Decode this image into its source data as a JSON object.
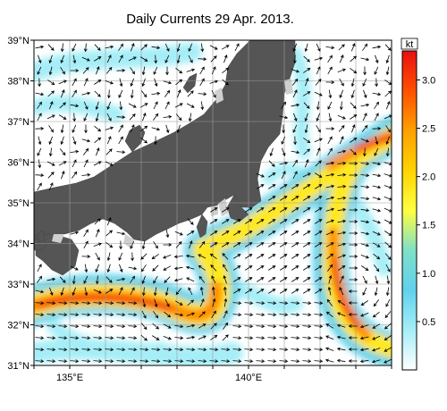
{
  "title": "Daily Currents 29 Apr. 2013.",
  "colorbar": {
    "unit": "kt",
    "ticks": [
      "0.5",
      "1.0",
      "1.5",
      "2.0",
      "2.5",
      "3.0"
    ],
    "tick_values": [
      0.5,
      1.0,
      1.5,
      2.0,
      2.5,
      3.0
    ],
    "range": [
      0,
      3.3
    ],
    "stops": [
      "#ffffff",
      "#a6eef7",
      "#5fd2ec",
      "#7fe0c8",
      "#ffff40",
      "#ffd400",
      "#ffa000",
      "#ff5000",
      "#e81010"
    ]
  },
  "axes": {
    "lon_ticks": [
      {
        "value": 135,
        "label": "135°E"
      },
      {
        "value": 140,
        "label": "140°E"
      }
    ],
    "lat_ticks": [
      {
        "value": 39,
        "label": "39°N"
      },
      {
        "value": 38,
        "label": "38°N"
      },
      {
        "value": 37,
        "label": "37°N"
      },
      {
        "value": 36,
        "label": "36°N"
      },
      {
        "value": 35,
        "label": "35°N"
      },
      {
        "value": 34,
        "label": "34°N"
      },
      {
        "value": 33,
        "label": "33°N"
      },
      {
        "value": 32,
        "label": "32°N"
      },
      {
        "value": 31,
        "label": "31°N"
      }
    ],
    "lon_range": [
      134,
      144
    ],
    "lat_range": [
      31,
      39
    ]
  },
  "colors": {
    "land": "#555555",
    "grid": "#9a9a9a",
    "arrow": "#000000"
  }
}
